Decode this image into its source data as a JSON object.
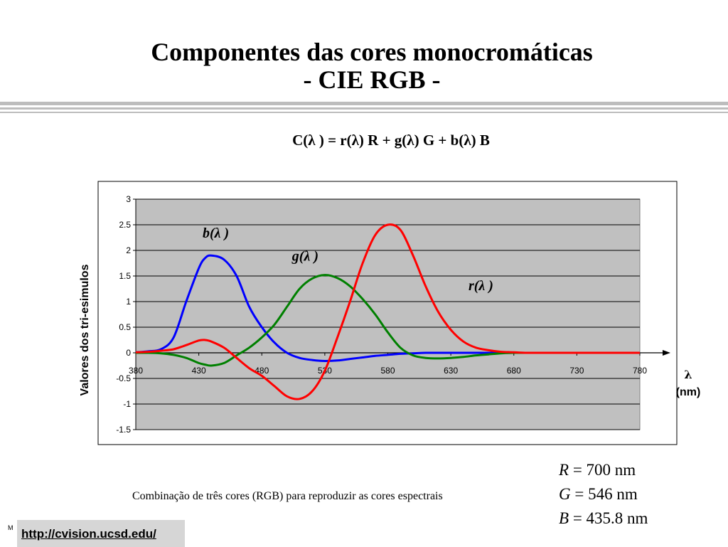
{
  "slide": {
    "title_line1": "Componentes das cores monocromáticas",
    "title_line2": "- CIE RGB -",
    "formula": "C(λ ) = r(λ) R + g(λ) G + b(λ) B",
    "caption": "Combinação de três cores (RGB) para reproduzir as cores espectrais",
    "primaries": [
      {
        "symbol": "R",
        "text": " = 700 nm"
      },
      {
        "symbol": "G",
        "text": " = 546 nm"
      },
      {
        "symbol": "B",
        "text": " = 435.8 nm"
      }
    ],
    "url": "http://cvision.ucsd.edu/",
    "footer_mark": "M"
  },
  "colors": {
    "plot_area": "#c0c0c0",
    "red": "#ff0000",
    "green": "#008000",
    "blue": "#0000ff"
  },
  "chart_data": {
    "type": "line",
    "xlabel": "λ\n(nm)",
    "xlabel_symbol": "λ",
    "xlabel_unit": "(nm)",
    "ylabel": "Valores dos tri-esimulos",
    "xlim": [
      380,
      780
    ],
    "ylim": [
      -1.5,
      3
    ],
    "x_ticks": [
      380,
      430,
      480,
      530,
      580,
      630,
      680,
      730,
      780
    ],
    "y_ticks": [
      -1.5,
      -1,
      -0.5,
      0,
      0.5,
      1,
      1.5,
      2,
      2.5,
      3
    ],
    "y_tick_labels": [
      "-1.5",
      "-1",
      "-0.5",
      "0",
      "0.5",
      "1",
      "1.5",
      "2",
      "2.5",
      "3"
    ],
    "grid": "horizontal",
    "legend": "none",
    "x": [
      380,
      390,
      400,
      410,
      420,
      430,
      435,
      440,
      450,
      460,
      470,
      480,
      490,
      500,
      510,
      520,
      530,
      540,
      550,
      560,
      570,
      580,
      590,
      600,
      610,
      620,
      630,
      640,
      650,
      660,
      670,
      680,
      690,
      700,
      720,
      740,
      760,
      780
    ],
    "series": [
      {
        "name": "b(λ )",
        "label": "b(λ )",
        "color": "#0000ff",
        "label_x": 433,
        "label_y": 2.25,
        "values": [
          0.01,
          0.03,
          0.07,
          0.3,
          1.0,
          1.65,
          1.85,
          1.9,
          1.82,
          1.5,
          0.9,
          0.5,
          0.2,
          0.0,
          -0.1,
          -0.14,
          -0.16,
          -0.15,
          -0.12,
          -0.09,
          -0.06,
          -0.04,
          -0.02,
          -0.01,
          0.0,
          0.0,
          0.0,
          0.0,
          0.0,
          0.0,
          0.0,
          0.0,
          0.0,
          0.0,
          0.0,
          0.0,
          0.0,
          0.0
        ]
      },
      {
        "name": "g(λ )",
        "label": "g(λ )",
        "color": "#008000",
        "label_x": 504,
        "label_y": 1.8,
        "values": [
          0.0,
          0.0,
          -0.01,
          -0.04,
          -0.1,
          -0.2,
          -0.23,
          -0.25,
          -0.2,
          -0.05,
          0.1,
          0.3,
          0.55,
          0.9,
          1.25,
          1.45,
          1.52,
          1.46,
          1.3,
          1.05,
          0.75,
          0.4,
          0.1,
          -0.05,
          -0.1,
          -0.11,
          -0.1,
          -0.08,
          -0.05,
          -0.03,
          -0.01,
          0.0,
          0.0,
          0.0,
          0.0,
          0.0,
          0.0,
          0.0
        ]
      },
      {
        "name": "r(λ )",
        "label": "r(λ )",
        "color": "#ff0000",
        "label_x": 644,
        "label_y": 1.22,
        "values": [
          0.01,
          0.02,
          0.04,
          0.07,
          0.15,
          0.24,
          0.25,
          0.22,
          0.1,
          -0.1,
          -0.3,
          -0.45,
          -0.65,
          -0.85,
          -0.9,
          -0.75,
          -0.35,
          0.3,
          1.0,
          1.75,
          2.3,
          2.5,
          2.4,
          1.9,
          1.3,
          0.8,
          0.45,
          0.22,
          0.1,
          0.05,
          0.02,
          0.01,
          0.0,
          0.0,
          0.0,
          0.0,
          0.0,
          0.0
        ]
      }
    ]
  }
}
